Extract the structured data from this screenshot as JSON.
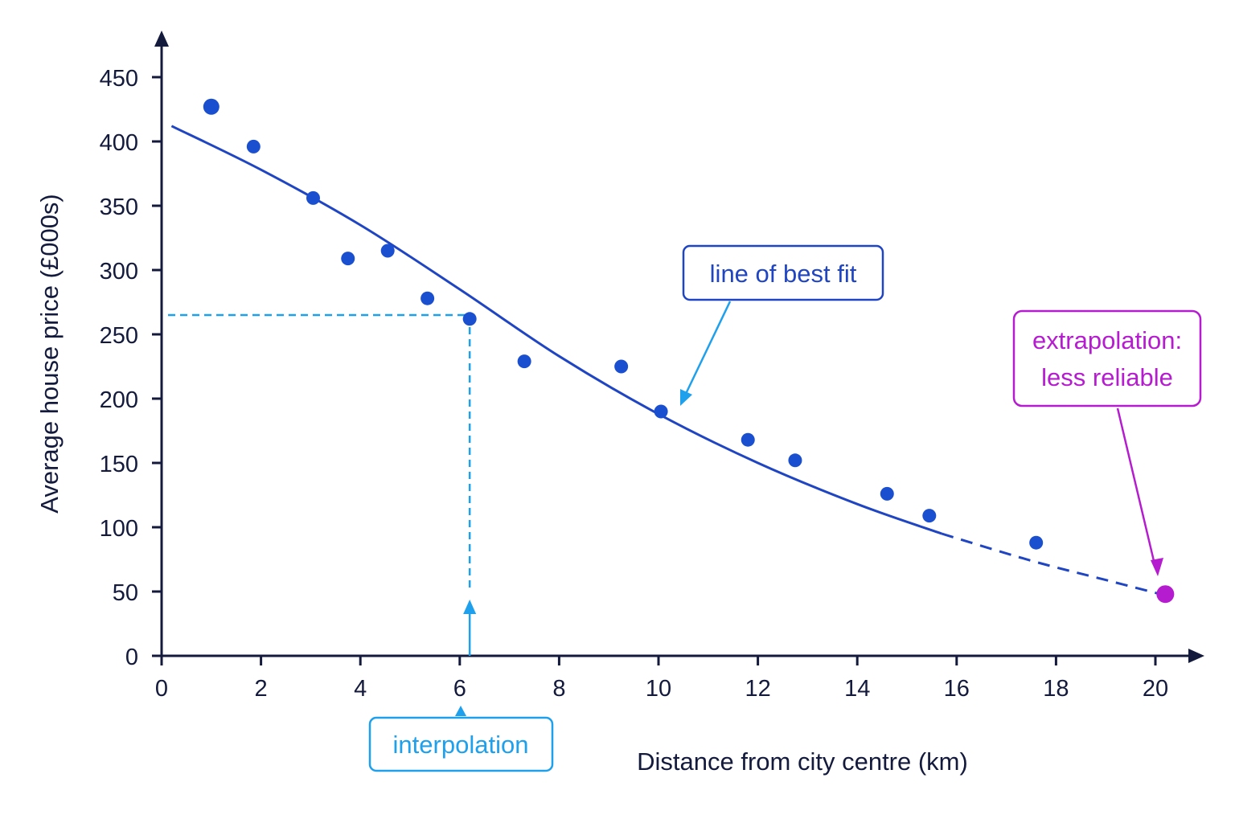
{
  "chart_data": {
    "type": "scatter",
    "xlabel": "Distance from city centre (km)",
    "ylabel": "Average house price (£000s)",
    "xlim": [
      0,
      20
    ],
    "ylim": [
      0,
      450
    ],
    "xticks": [
      0,
      2,
      4,
      6,
      8,
      10,
      12,
      14,
      16,
      18,
      20
    ],
    "yticks": [
      0,
      50,
      100,
      150,
      200,
      250,
      300,
      350,
      400,
      450
    ],
    "grid": false,
    "points": [
      {
        "x": 1.0,
        "y": 427
      },
      {
        "x": 1.85,
        "y": 396
      },
      {
        "x": 3.05,
        "y": 356
      },
      {
        "x": 3.75,
        "y": 309
      },
      {
        "x": 4.55,
        "y": 315
      },
      {
        "x": 5.35,
        "y": 278
      },
      {
        "x": 6.2,
        "y": 262
      },
      {
        "x": 7.3,
        "y": 229
      },
      {
        "x": 9.25,
        "y": 225
      },
      {
        "x": 10.05,
        "y": 190
      },
      {
        "x": 11.8,
        "y": 168
      },
      {
        "x": 12.75,
        "y": 152
      },
      {
        "x": 14.6,
        "y": 126
      },
      {
        "x": 15.45,
        "y": 109
      },
      {
        "x": 17.6,
        "y": 88
      }
    ],
    "best_fit": {
      "solid": [
        {
          "x": 0.2,
          "y": 412
        },
        {
          "x": 2,
          "y": 378
        },
        {
          "x": 4,
          "y": 335
        },
        {
          "x": 6,
          "y": 285
        },
        {
          "x": 8,
          "y": 233
        },
        {
          "x": 10,
          "y": 188
        },
        {
          "x": 12,
          "y": 150
        },
        {
          "x": 14,
          "y": 118
        },
        {
          "x": 15.7,
          "y": 95
        }
      ],
      "dashed": [
        {
          "x": 15.7,
          "y": 95
        },
        {
          "x": 17.5,
          "y": 74
        },
        {
          "x": 19,
          "y": 59
        },
        {
          "x": 20.1,
          "y": 48
        }
      ]
    },
    "interpolation": {
      "x": 6.2,
      "y": 265
    },
    "extrapolation_point": {
      "x": 20.2,
      "y": 48
    },
    "annotations": {
      "best_fit_label": "line of best fit",
      "interpolation_label": "interpolation",
      "extrapolation_label_line1": "extrapolation:",
      "extrapolation_label_line2": "less reliable"
    },
    "colors": {
      "axis": "#141a3c",
      "points": "#1a4fd0",
      "fit_line": "#1f45c2",
      "interpolation": "#1ea0ec",
      "extrapolation": "#b61ccf"
    }
  }
}
